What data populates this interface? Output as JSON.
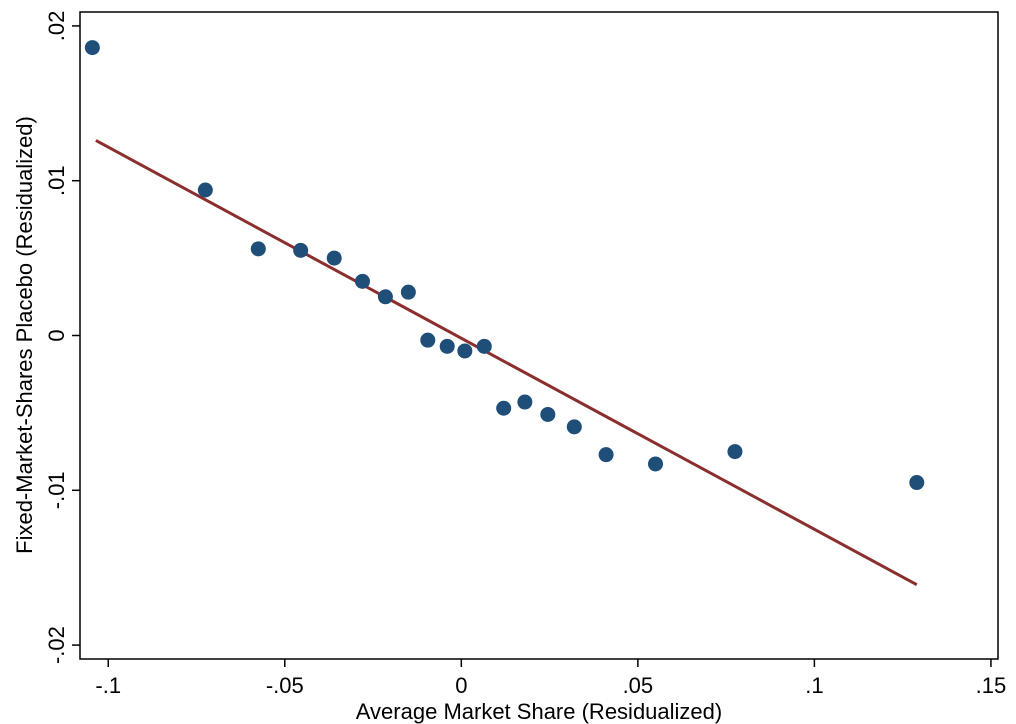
{
  "chart_data": {
    "type": "scatter",
    "title": "",
    "xlabel": "Average Market Share (Residualized)",
    "ylabel": "Fixed-Market-Shares Placebo (Residualized)",
    "xlim": [
      -0.108,
      0.152
    ],
    "ylim": [
      -0.0209,
      0.0209
    ],
    "grid": false,
    "legend": "none",
    "x_ticks": [
      {
        "value": -0.1,
        "label": "-.1"
      },
      {
        "value": -0.05,
        "label": "-.05"
      },
      {
        "value": 0,
        "label": "0"
      },
      {
        "value": 0.05,
        "label": ".05"
      },
      {
        "value": 0.1,
        "label": ".1"
      },
      {
        "value": 0.15,
        "label": ".15"
      }
    ],
    "y_ticks": [
      {
        "value": -0.02,
        "label": "-.02"
      },
      {
        "value": -0.01,
        "label": "-.01"
      },
      {
        "value": 0,
        "label": "0"
      },
      {
        "value": 0.01,
        "label": ".01"
      },
      {
        "value": 0.02,
        "label": ".02"
      }
    ],
    "series": [
      {
        "marker_color": "#1f4e79",
        "points": [
          {
            "x": -0.1045,
            "y": 0.0186
          },
          {
            "x": -0.0725,
            "y": 0.0094
          },
          {
            "x": -0.0575,
            "y": 0.0056
          },
          {
            "x": -0.0455,
            "y": 0.0055
          },
          {
            "x": -0.036,
            "y": 0.005
          },
          {
            "x": -0.028,
            "y": 0.0035
          },
          {
            "x": -0.0215,
            "y": 0.0025
          },
          {
            "x": -0.015,
            "y": 0.0028
          },
          {
            "x": -0.0095,
            "y": -0.0003
          },
          {
            "x": -0.004,
            "y": -0.0007
          },
          {
            "x": 0.001,
            "y": -0.001
          },
          {
            "x": 0.0065,
            "y": -0.0007
          },
          {
            "x": 0.012,
            "y": -0.0047
          },
          {
            "x": 0.018,
            "y": -0.0043
          },
          {
            "x": 0.0245,
            "y": -0.0051
          },
          {
            "x": 0.032,
            "y": -0.0059
          },
          {
            "x": 0.041,
            "y": -0.0077
          },
          {
            "x": 0.055,
            "y": -0.0083
          },
          {
            "x": 0.0775,
            "y": -0.0075
          },
          {
            "x": 0.129,
            "y": -0.0095
          }
        ]
      }
    ],
    "fit_line": {
      "color": "#8b2e2e",
      "x": [
        -0.1035,
        0.129
      ],
      "y": [
        0.0126,
        -0.0161
      ]
    }
  }
}
